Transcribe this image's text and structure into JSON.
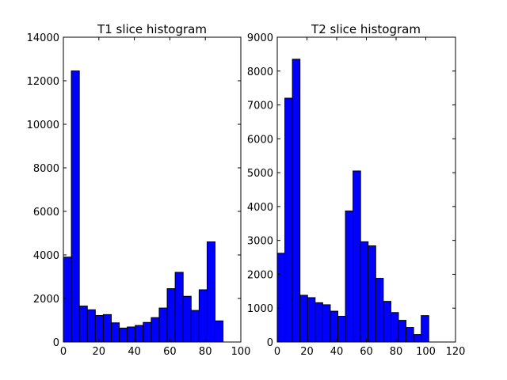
{
  "chart_data": [
    {
      "type": "bar",
      "title": "T1 slice histogram",
      "xlabel": "",
      "ylabel": "",
      "xlim": [
        0,
        100
      ],
      "ylim": [
        0,
        14000
      ],
      "xticks": [
        "0",
        "20",
        "40",
        "60",
        "80",
        "100"
      ],
      "yticks": [
        "0",
        "2000",
        "4000",
        "6000",
        "8000",
        "10000",
        "12000",
        "14000"
      ],
      "bin_edges": [
        0,
        4.5,
        9,
        13.5,
        18,
        22.5,
        27,
        31.5,
        36,
        40.5,
        45,
        49.5,
        54,
        58.5,
        63,
        67.5,
        72,
        76.5,
        81,
        85.5,
        90
      ],
      "values": [
        3900,
        12450,
        1650,
        1480,
        1220,
        1260,
        880,
        640,
        690,
        760,
        900,
        1120,
        1560,
        2450,
        3200,
        2100,
        1450,
        2400,
        4600,
        970
      ],
      "bar_color": "#0000ff",
      "grid": false
    },
    {
      "type": "bar",
      "title": "T2 slice histogram",
      "xlabel": "",
      "ylabel": "",
      "xlim": [
        0,
        120
      ],
      "ylim": [
        0,
        9000
      ],
      "xticks": [
        "0",
        "20",
        "40",
        "60",
        "80",
        "100",
        "120"
      ],
      "yticks": [
        "0",
        "1000",
        "2000",
        "3000",
        "4000",
        "5000",
        "6000",
        "7000",
        "8000",
        "9000"
      ],
      "bin_edges": [
        0,
        5.1,
        10.2,
        15.3,
        20.4,
        25.5,
        30.6,
        35.7,
        40.8,
        45.9,
        51,
        56.1,
        61.2,
        66.3,
        71.4,
        76.5,
        81.6,
        86.7,
        91.8,
        96.9,
        102
      ],
      "values": [
        2620,
        7200,
        8350,
        1380,
        1310,
        1160,
        1100,
        910,
        760,
        3870,
        5050,
        2960,
        2840,
        1880,
        1200,
        870,
        640,
        430,
        220,
        780
      ],
      "bar_color": "#0000ff",
      "grid": false
    }
  ]
}
